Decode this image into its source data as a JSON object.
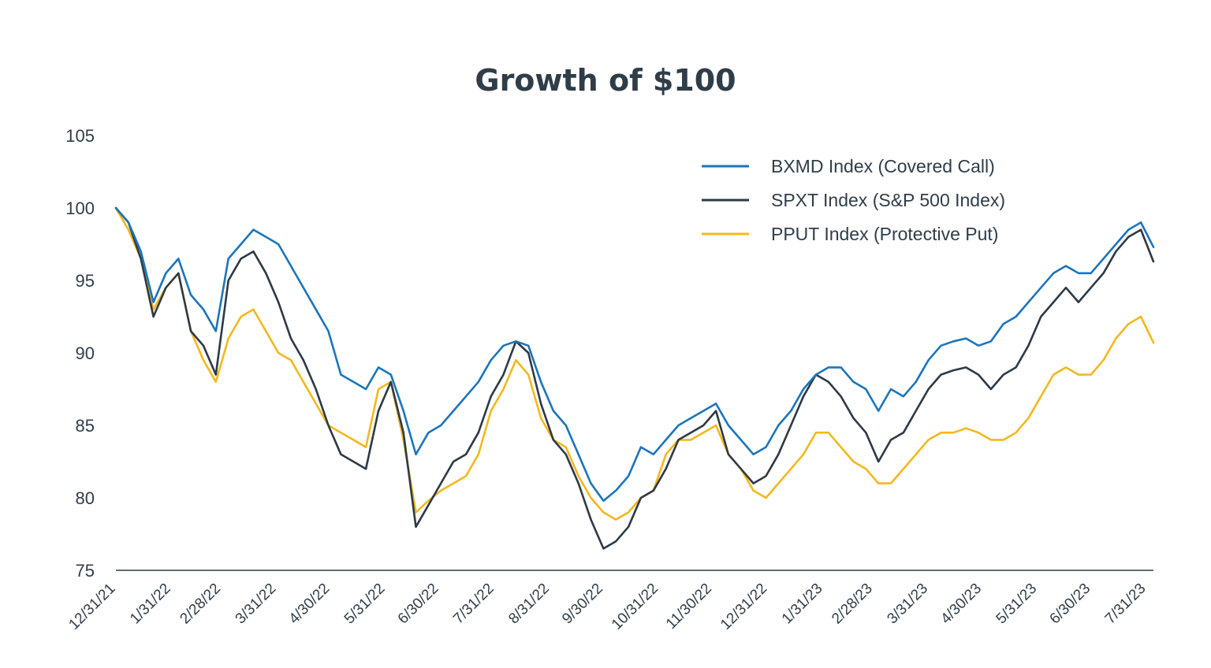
{
  "chart_data": {
    "type": "line",
    "title": "Growth of $100",
    "xlabel": "",
    "ylabel": "",
    "ylim": [
      75,
      105
    ],
    "yticks": [
      "75",
      "80",
      "85",
      "90",
      "95",
      "100",
      "105"
    ],
    "grid": false,
    "legend_position": "top-right",
    "xtick_labels": [
      "12/31/21",
      "1/31/22",
      "2/28/22",
      "3/31/22",
      "4/30/22",
      "5/31/22",
      "6/30/22",
      "7/31/22",
      "8/31/22",
      "9/30/22",
      "10/31/22",
      "11/30/22",
      "12/31/22",
      "1/31/23",
      "2/28/23",
      "3/31/23",
      "4/30/23",
      "5/31/23",
      "6/30/23",
      "7/31/23"
    ],
    "x_dates": [
      "2021-12-31",
      "2022-01-07",
      "2022-01-14",
      "2022-01-21",
      "2022-01-28",
      "2022-02-04",
      "2022-02-11",
      "2022-02-18",
      "2022-02-25",
      "2022-03-04",
      "2022-03-11",
      "2022-03-18",
      "2022-03-25",
      "2022-04-01",
      "2022-04-08",
      "2022-04-15",
      "2022-04-22",
      "2022-04-29",
      "2022-05-06",
      "2022-05-13",
      "2022-05-20",
      "2022-05-27",
      "2022-06-03",
      "2022-06-10",
      "2022-06-17",
      "2022-06-24",
      "2022-07-01",
      "2022-07-08",
      "2022-07-15",
      "2022-07-22",
      "2022-07-29",
      "2022-08-05",
      "2022-08-12",
      "2022-08-19",
      "2022-08-26",
      "2022-09-02",
      "2022-09-09",
      "2022-09-16",
      "2022-09-23",
      "2022-09-30",
      "2022-10-07",
      "2022-10-14",
      "2022-10-21",
      "2022-10-28",
      "2022-11-04",
      "2022-11-11",
      "2022-11-18",
      "2022-11-25",
      "2022-12-02",
      "2022-12-09",
      "2022-12-16",
      "2022-12-23",
      "2022-12-30",
      "2023-01-06",
      "2023-01-13",
      "2023-01-20",
      "2023-01-27",
      "2023-02-03",
      "2023-02-10",
      "2023-02-17",
      "2023-02-24",
      "2023-03-03",
      "2023-03-10",
      "2023-03-17",
      "2023-03-24",
      "2023-03-31",
      "2023-04-07",
      "2023-04-14",
      "2023-04-21",
      "2023-04-28",
      "2023-05-05",
      "2023-05-12",
      "2023-05-19",
      "2023-05-26",
      "2023-06-02",
      "2023-06-09",
      "2023-06-16",
      "2023-06-23",
      "2023-06-30",
      "2023-07-07",
      "2023-07-14",
      "2023-07-21",
      "2023-07-28",
      "2023-08-04"
    ],
    "series": [
      {
        "name": "BXMD Index (Covered Call)",
        "color": "#1b75bc",
        "values": [
          100,
          99.0,
          97.0,
          93.5,
          95.5,
          96.5,
          94.0,
          93.0,
          91.5,
          96.5,
          97.5,
          98.5,
          98.0,
          97.5,
          96.0,
          94.5,
          93.0,
          91.5,
          88.5,
          88.0,
          87.5,
          89.0,
          88.5,
          86.0,
          83.0,
          84.5,
          85.0,
          86.0,
          87.0,
          88.0,
          89.5,
          90.5,
          90.8,
          90.5,
          88.0,
          86.0,
          85.0,
          83.0,
          81.0,
          79.8,
          80.5,
          81.5,
          83.5,
          83.0,
          84.0,
          85.0,
          85.5,
          86.0,
          86.5,
          85.0,
          84.0,
          83.0,
          83.5,
          85.0,
          86.0,
          87.5,
          88.5,
          89.0,
          89.0,
          88.0,
          87.5,
          86.0,
          87.5,
          87.0,
          88.0,
          89.5,
          90.5,
          90.8,
          91.0,
          90.5,
          90.8,
          92.0,
          92.5,
          93.5,
          94.5,
          95.5,
          96.0,
          95.5,
          95.5,
          96.5,
          97.5,
          98.5,
          99.0,
          97.3
        ]
      },
      {
        "name": "SPXT Index (S&P 500 Index)",
        "color": "#2d3a45",
        "values": [
          100,
          99.0,
          96.5,
          92.5,
          94.5,
          95.5,
          91.5,
          90.5,
          88.5,
          95.0,
          96.5,
          97.0,
          95.5,
          93.5,
          91.0,
          89.5,
          87.5,
          85.0,
          83.0,
          82.5,
          82.0,
          86.0,
          88.0,
          84.5,
          78.0,
          79.5,
          81.0,
          82.5,
          83.0,
          84.5,
          87.0,
          88.5,
          90.8,
          90.0,
          86.5,
          84.0,
          83.0,
          81.0,
          78.5,
          76.5,
          77.0,
          78.0,
          80.0,
          80.5,
          82.0,
          84.0,
          84.5,
          85.0,
          86.0,
          83.0,
          82.0,
          81.0,
          81.5,
          83.0,
          85.0,
          87.0,
          88.5,
          88.0,
          87.0,
          85.5,
          84.5,
          82.5,
          84.0,
          84.5,
          86.0,
          87.5,
          88.5,
          88.8,
          89.0,
          88.5,
          87.5,
          88.5,
          89.0,
          90.5,
          92.5,
          93.5,
          94.5,
          93.5,
          94.5,
          95.5,
          97.0,
          98.0,
          98.5,
          96.3
        ]
      },
      {
        "name": "PPUT Index (Protective Put)",
        "color": "#f3b81c",
        "values": [
          100,
          98.5,
          96.5,
          93.0,
          94.5,
          95.5,
          91.5,
          89.5,
          88.0,
          91.0,
          92.5,
          93.0,
          91.5,
          90.0,
          89.5,
          88.0,
          86.5,
          85.0,
          84.5,
          84.0,
          83.5,
          87.5,
          88.0,
          84.0,
          79.0,
          79.8,
          80.5,
          81.0,
          81.5,
          83.0,
          86.0,
          87.5,
          89.5,
          88.5,
          85.5,
          84.0,
          83.5,
          81.5,
          80.0,
          79.0,
          78.5,
          79.0,
          80.0,
          80.5,
          83.0,
          84.0,
          84.0,
          84.5,
          85.0,
          83.0,
          82.0,
          80.5,
          80.0,
          81.0,
          82.0,
          83.0,
          84.5,
          84.5,
          83.5,
          82.5,
          82.0,
          81.0,
          81.0,
          82.0,
          83.0,
          84.0,
          84.5,
          84.5,
          84.8,
          84.5,
          84.0,
          84.0,
          84.5,
          85.5,
          87.0,
          88.5,
          89.0,
          88.5,
          88.5,
          89.5,
          91.0,
          92.0,
          92.5,
          90.7
        ]
      }
    ]
  }
}
